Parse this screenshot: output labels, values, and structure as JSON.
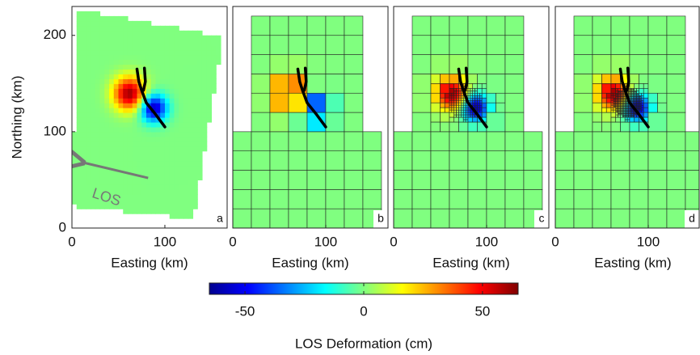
{
  "chart_data": [
    {
      "type": "map",
      "panel_label": "a",
      "xlabel": "Easting (km)",
      "ylabel": "Northing (km)",
      "annotation": "LOS",
      "xlim": [
        0,
        167
      ],
      "ylim": [
        0,
        230
      ],
      "xticks": [
        0,
        100
      ],
      "yticks": [
        0,
        100,
        200
      ]
    },
    {
      "type": "map",
      "panel_label": "b",
      "xlabel": "Easting (km)",
      "xlim": [
        0,
        167
      ],
      "ylim": [
        0,
        230
      ],
      "xticks": [
        0,
        100
      ]
    },
    {
      "type": "map",
      "panel_label": "c",
      "xlabel": "Easting (km)",
      "xlim": [
        0,
        167
      ],
      "ylim": [
        0,
        230
      ],
      "xticks": [
        0,
        100
      ]
    },
    {
      "type": "map",
      "panel_label": "d",
      "xlabel": "Easting (km)",
      "xlim": [
        0,
        167
      ],
      "ylim": [
        0,
        230
      ],
      "xticks": [
        0,
        100
      ]
    },
    {
      "type": "colorbar",
      "label": "LOS Deformation (cm)",
      "clim": [
        -65,
        65
      ],
      "ticks": [
        -50,
        0,
        50
      ]
    }
  ]
}
